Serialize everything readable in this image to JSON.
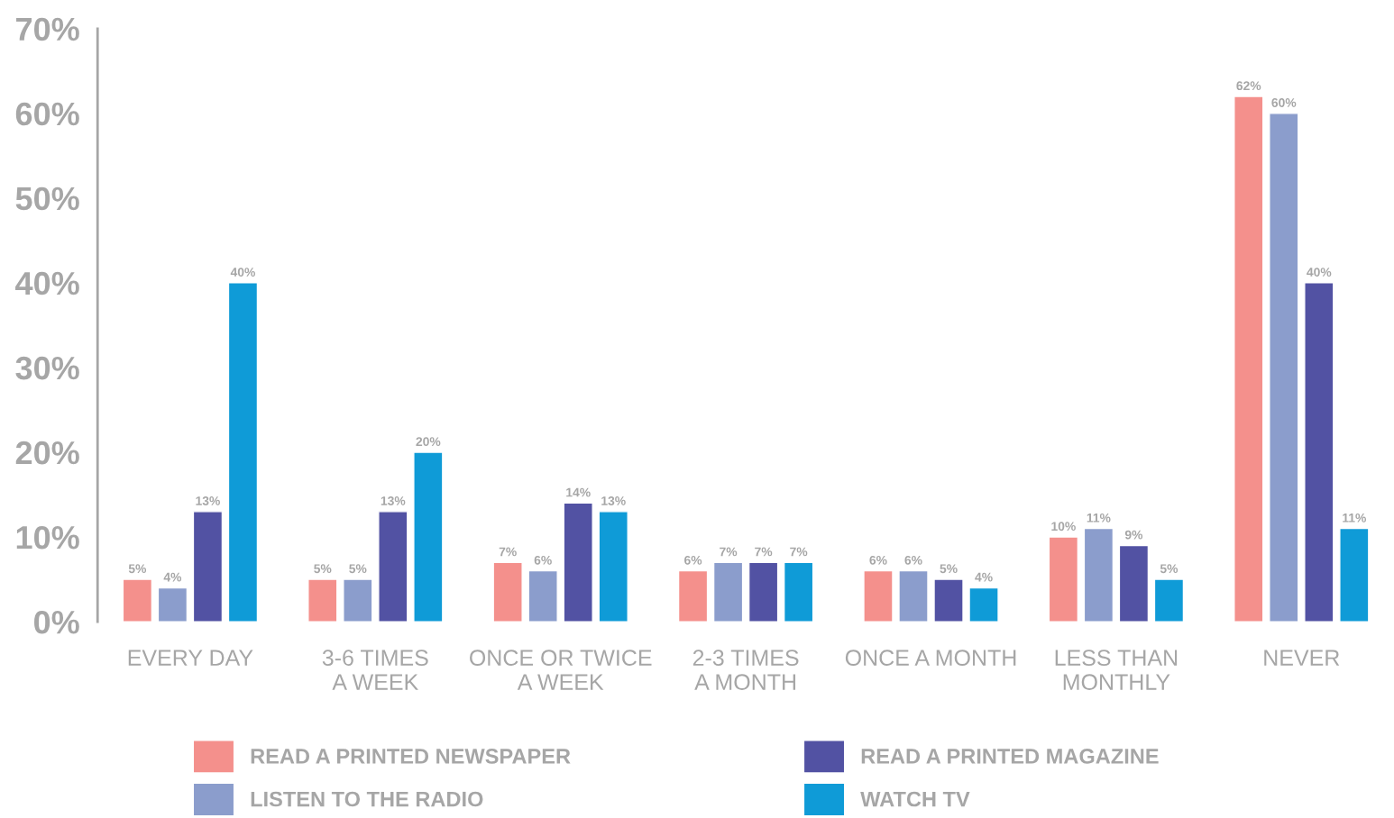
{
  "chart_data": {
    "type": "bar",
    "categories": [
      "EVERY DAY",
      "3-6 TIMES\nA WEEK",
      "ONCE OR TWICE\nA WEEK",
      "2-3 TIMES\nA MONTH",
      "ONCE A MONTH",
      "LESS THAN\nMONTHLY",
      "NEVER"
    ],
    "series": [
      {
        "name": "READ A PRINTED NEWSPAPER",
        "color": "#f4908c",
        "values": [
          5,
          5,
          7,
          6,
          6,
          10,
          62
        ],
        "value_labels": [
          "5%",
          "5%",
          "7%",
          "6%",
          "6%",
          "10%",
          "62%"
        ]
      },
      {
        "name": "LISTEN TO THE RADIO",
        "color": "#8b9dcc",
        "values": [
          4,
          5,
          6,
          7,
          6,
          11,
          60
        ],
        "value_labels": [
          "4%",
          "5%",
          "6%",
          "7%",
          "6%",
          "11%",
          "60%"
        ]
      },
      {
        "name": "READ A PRINTED MAGAZINE",
        "color": "#5252a3",
        "values": [
          13,
          13,
          14,
          7,
          5,
          9,
          40
        ],
        "value_labels": [
          "13%",
          "13%",
          "14%",
          "7%",
          "5%",
          "9%",
          "40%"
        ]
      },
      {
        "name": "WATCH TV",
        "color": "#0f9bd7",
        "values": [
          40,
          20,
          13,
          7,
          4,
          5,
          11
        ],
        "value_labels": [
          "40%",
          "20%",
          "13%",
          "7%",
          "4%",
          "5%",
          "11%"
        ]
      }
    ],
    "ylim": [
      0,
      70
    ],
    "yticks": [
      {
        "value": 0,
        "label": "0%"
      },
      {
        "value": 10,
        "label": "10%"
      },
      {
        "value": 20,
        "label": "20%"
      },
      {
        "value": 30,
        "label": "30%"
      },
      {
        "value": 40,
        "label": "40%"
      },
      {
        "value": 50,
        "label": "50%"
      },
      {
        "value": 60,
        "label": "60%"
      },
      {
        "value": 70,
        "label": "70%"
      }
    ],
    "legend": "bottom",
    "grid": false
  }
}
